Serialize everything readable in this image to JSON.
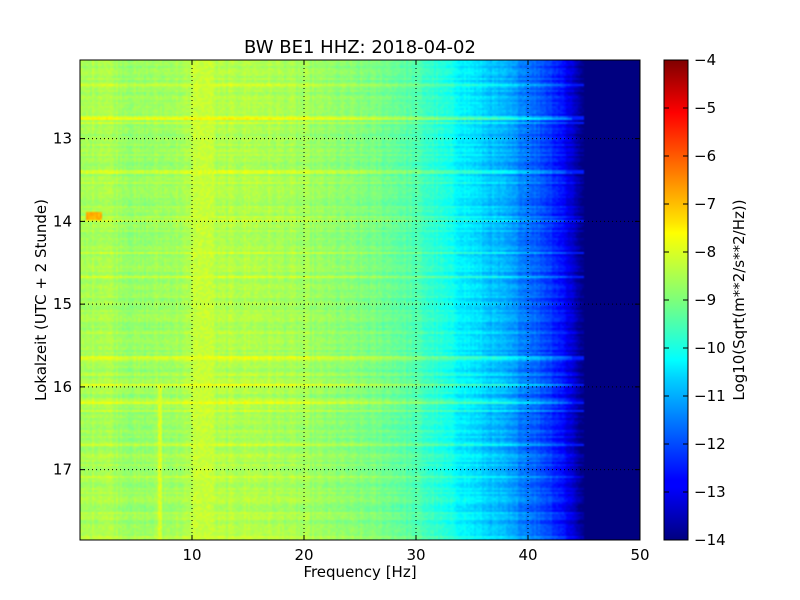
{
  "chart_data": {
    "type": "heatmap",
    "title": "BW BE1 HHZ: 2018-04-02",
    "xlabel": "Frequency [Hz]",
    "ylabel": "Lokalzeit (UTC + 2 Stunde)",
    "xlim": [
      0,
      50
    ],
    "ylim": [
      12.05,
      17.85
    ],
    "y_inverted": true,
    "x_ticks": [
      10,
      20,
      30,
      40,
      50
    ],
    "y_ticks": [
      13,
      14,
      15,
      16,
      17
    ],
    "grid": true,
    "colormap": "jet",
    "colorbar": {
      "label": "Log10(Sqrt(m**2/s**2/Hz))",
      "range": [
        -14,
        -4
      ],
      "ticks": [
        -4,
        -5,
        -6,
        -7,
        -8,
        -9,
        -10,
        -11,
        -12,
        -13,
        -14
      ]
    },
    "frequency_profile": {
      "frequency_hz": [
        0,
        2,
        5,
        10,
        15,
        20,
        25,
        28,
        30,
        32,
        34,
        36,
        38,
        40,
        42,
        43,
        44,
        45,
        50
      ],
      "log10_psd": [
        -8.7,
        -8.5,
        -8.8,
        -8.6,
        -8.5,
        -8.7,
        -9.0,
        -9.2,
        -9.5,
        -9.9,
        -10.3,
        -10.7,
        -11.1,
        -11.6,
        -12.2,
        -12.6,
        -13.2,
        -14,
        -14
      ]
    },
    "highlights": [
      {
        "label": "high-energy patch",
        "frequency_hz": [
          0.5,
          2
        ],
        "time_h": [
          13.88,
          13.98
        ],
        "log10_psd": -7.0
      },
      {
        "label": "tonal line",
        "frequency_hz": [
          10,
          12
        ],
        "time_h": [
          12.0,
          17.85
        ],
        "log10_psd": -8.3
      },
      {
        "label": "tonal line",
        "frequency_hz": [
          7,
          7.3
        ],
        "time_h": [
          16.0,
          17.85
        ],
        "log10_psd": -8.1
      }
    ],
    "bright_rows_time_h": [
      12.35,
      12.75,
      13.4,
      14.0,
      15.65,
      15.98,
      16.2,
      16.7
    ]
  }
}
